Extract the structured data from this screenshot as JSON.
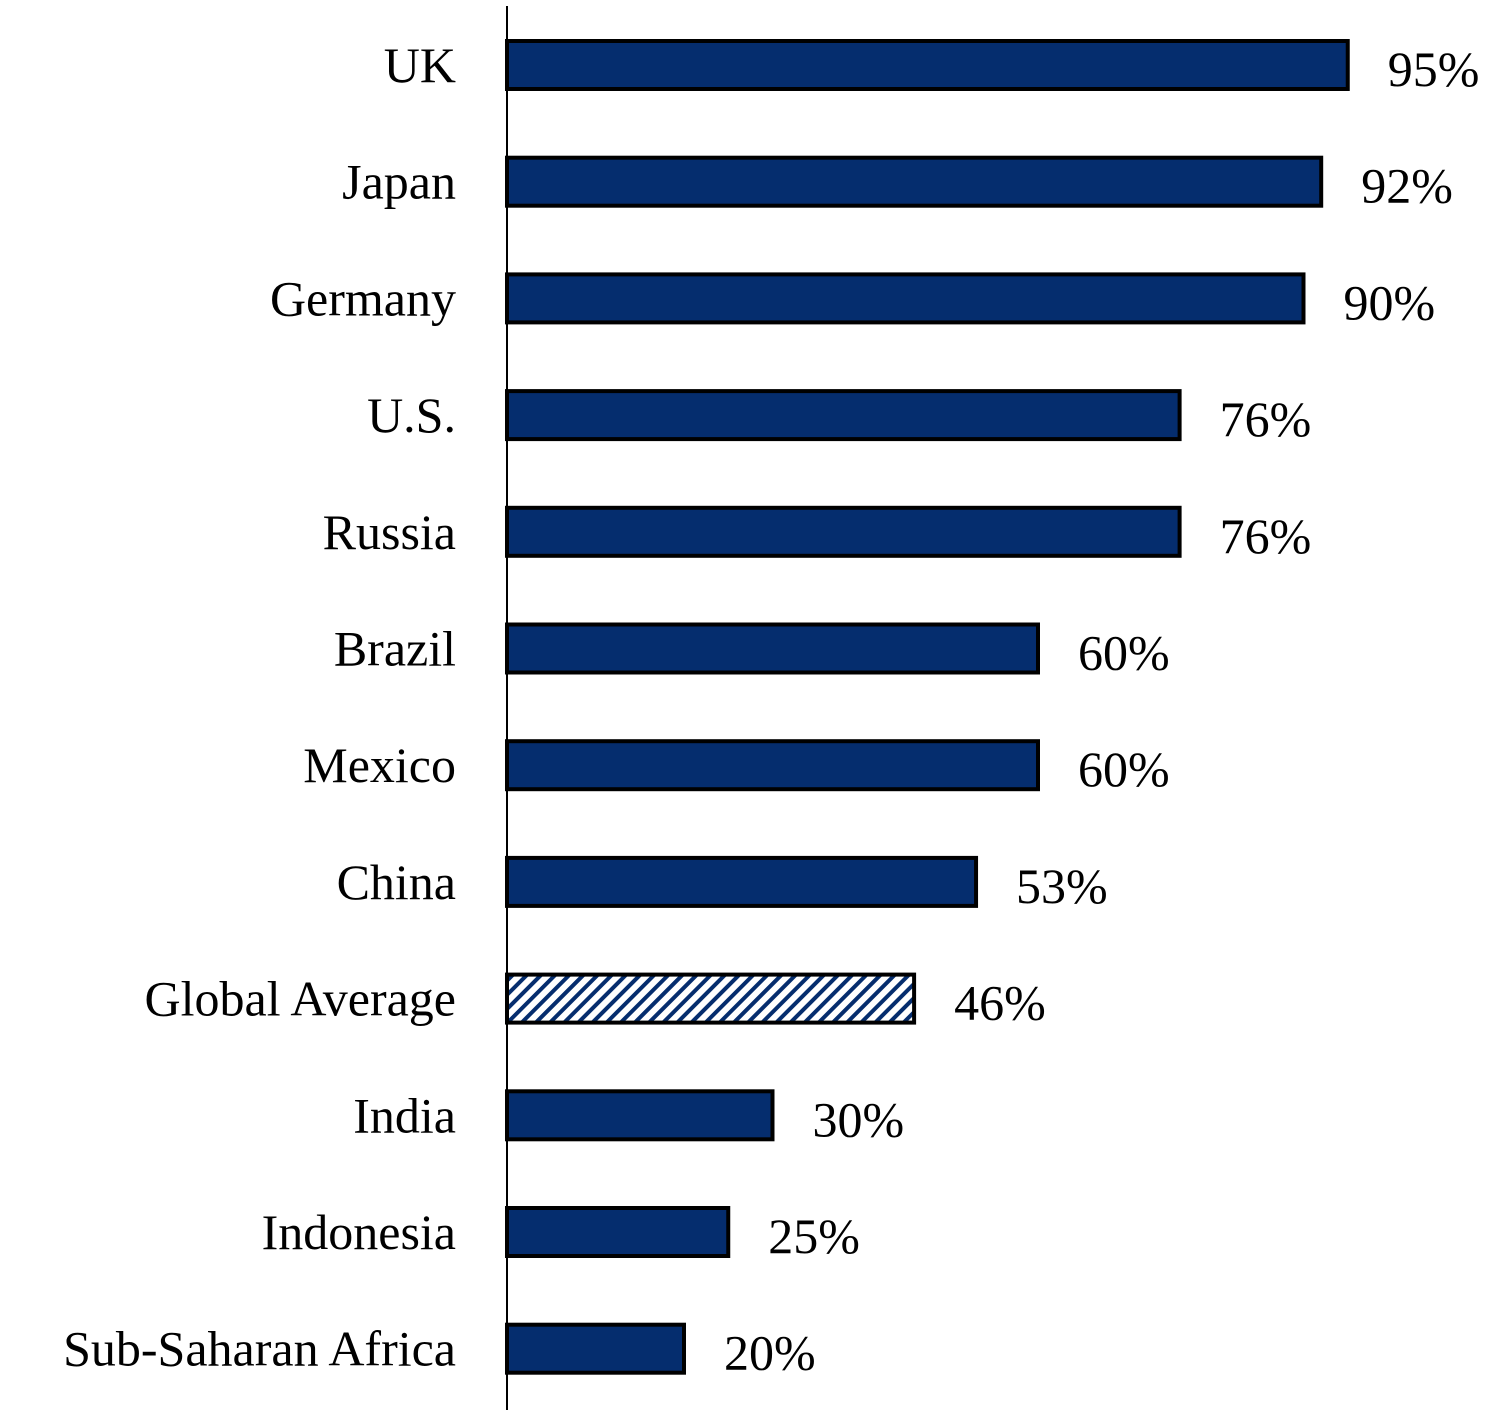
{
  "chart_data": {
    "type": "bar",
    "orientation": "horizontal",
    "title": "",
    "xlabel": "",
    "ylabel": "",
    "categories": [
      "UK",
      "Japan",
      "Germany",
      "U.S.",
      "Russia",
      "Brazil",
      "Mexico",
      "China",
      "Global Average",
      "India",
      "Indonesia",
      "Sub-Saharan Africa"
    ],
    "values": [
      95,
      92,
      90,
      76,
      76,
      60,
      60,
      53,
      46,
      30,
      25,
      20
    ],
    "value_labels": [
      "95%",
      "92%",
      "90%",
      "76%",
      "76%",
      "60%",
      "60%",
      "53%",
      "46%",
      "30%",
      "25%",
      "20%"
    ],
    "xlim": [
      0,
      100
    ],
    "grid": false,
    "legend": "none",
    "highlight_category": "Global Average",
    "colors": {
      "bar_fill": "#052d6e",
      "bar_stroke": "#000000",
      "highlight_pattern": "#052d6e",
      "highlight_background": "#ffffff",
      "axis": "#000000",
      "text": "#000000"
    }
  }
}
